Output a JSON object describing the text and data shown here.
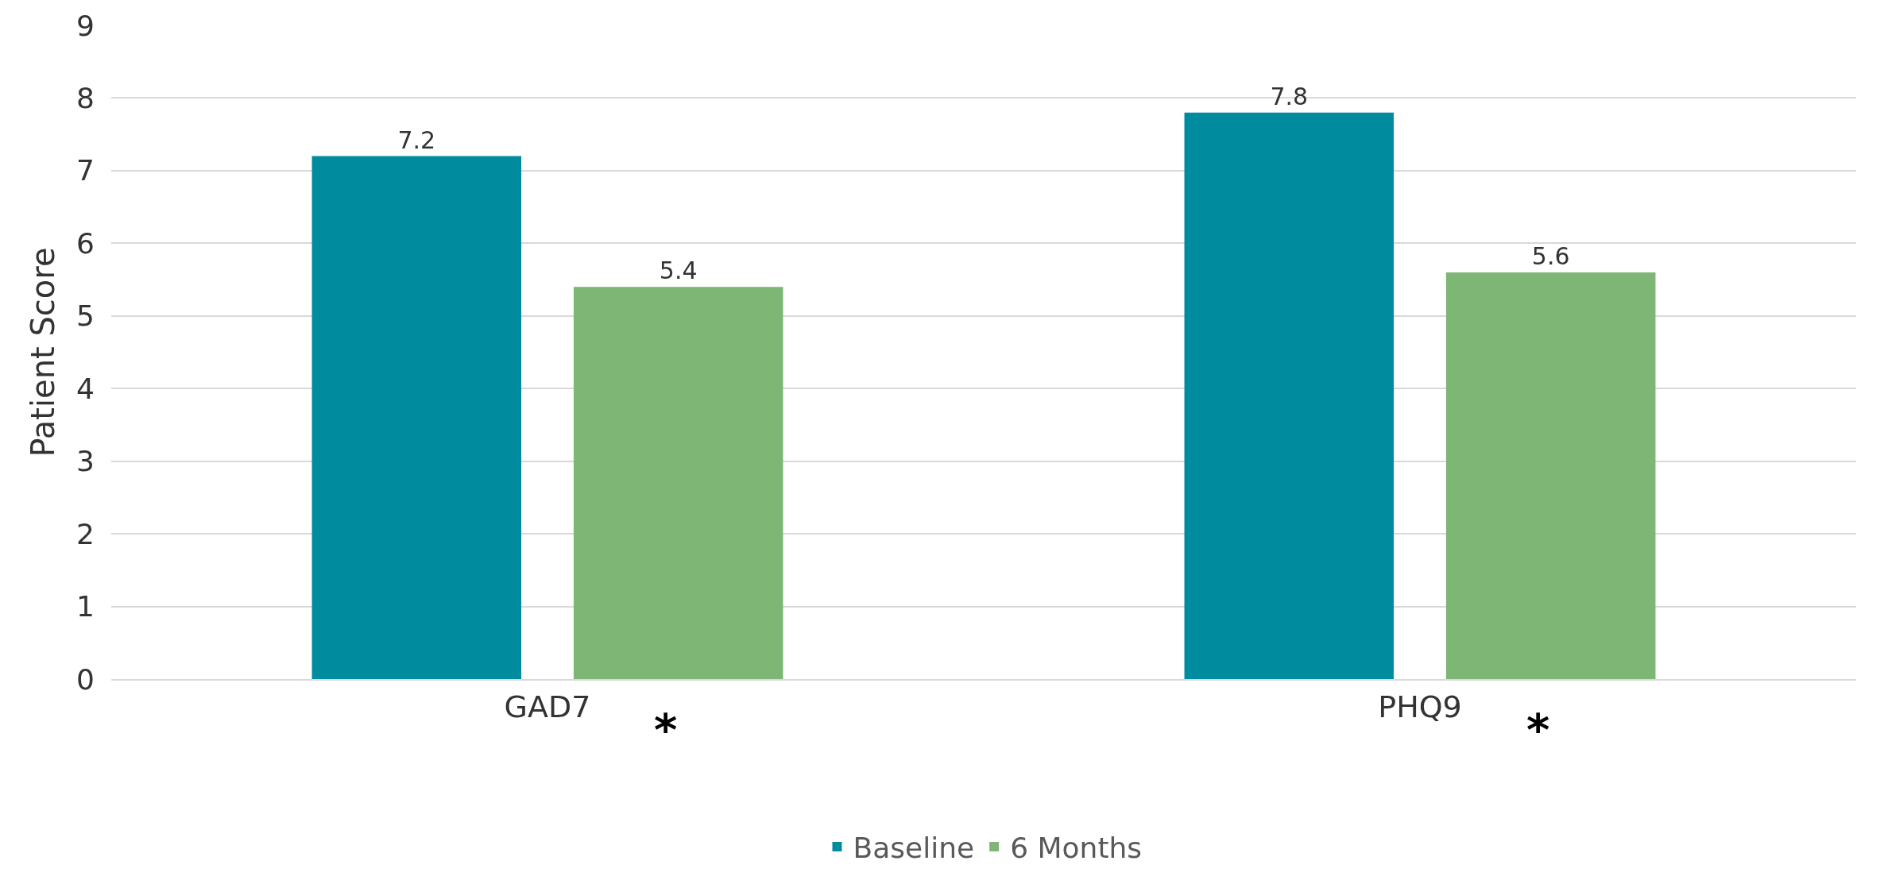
{
  "chart_data": {
    "type": "bar",
    "ylabel": "Patient Score",
    "categories": [
      "GAD7",
      "PHQ9"
    ],
    "series": [
      {
        "name": "Baseline",
        "color": "#008c9e",
        "values": [
          7.2,
          7.8
        ]
      },
      {
        "name": "6 Months",
        "color": "#7db675",
        "values": [
          5.4,
          5.6
        ]
      }
    ],
    "ylim": [
      0,
      9
    ],
    "yticks": [
      0,
      1,
      2,
      3,
      4,
      5,
      6,
      7,
      8,
      9
    ],
    "grid": "y",
    "legend": "bottom",
    "data_labels": true,
    "annotations": [
      "*",
      "*"
    ]
  }
}
